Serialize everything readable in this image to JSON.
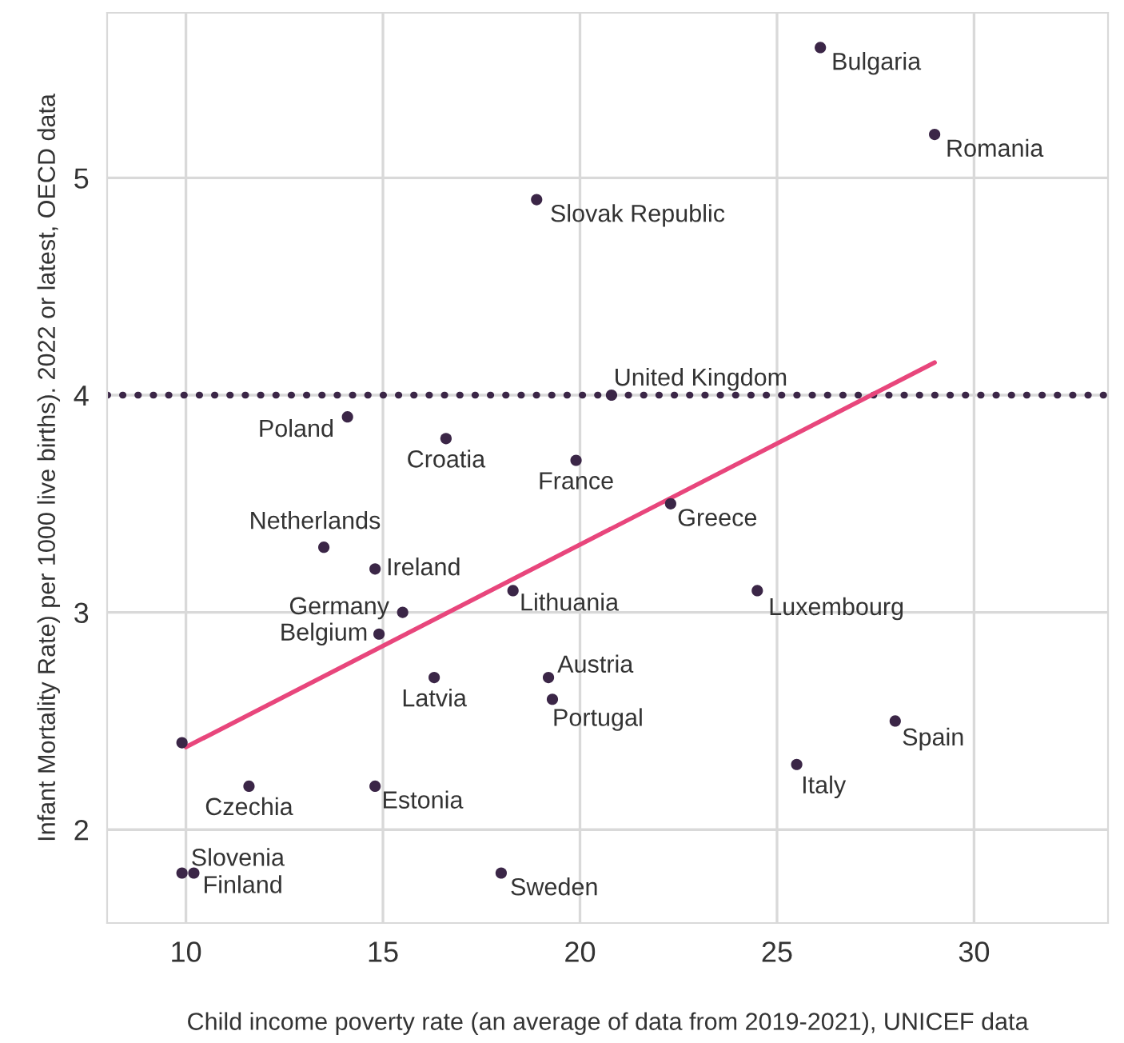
{
  "chart_data": {
    "type": "scatter",
    "xlabel": "Child income poverty rate (an average of data from 2019-2021), UNICEF data",
    "ylabel": "Infant Mortality Rate) per 1000 live births). 2022 or latest, OECD data",
    "xlim": [
      8,
      33.4
    ],
    "ylim": [
      1.57,
      5.76
    ],
    "xticks": [
      10,
      15,
      20,
      25,
      30
    ],
    "yticks": [
      2,
      3,
      4,
      5
    ],
    "grid": true,
    "series": [
      {
        "marker": "circle",
        "color": "#3b2647",
        "x": [
          26.1,
          29.0,
          18.9,
          20.8,
          14.1,
          16.6,
          19.9,
          22.3,
          13.5,
          14.8,
          18.3,
          24.5,
          15.5,
          14.9,
          16.3,
          19.2,
          19.3,
          28.0,
          25.5,
          9.9,
          11.6,
          14.8,
          9.9,
          10.2,
          18.0
        ],
        "values": [
          5.6,
          5.2,
          4.9,
          4.0,
          3.9,
          3.8,
          3.7,
          3.5,
          3.3,
          3.2,
          3.1,
          3.1,
          3.0,
          2.9,
          2.7,
          2.7,
          2.6,
          2.5,
          2.3,
          2.4,
          2.2,
          2.2,
          1.8,
          1.8,
          1.8
        ]
      },
      {
        "type": "line",
        "color": "#e8467c",
        "x": [
          10,
          29
        ],
        "values": [
          2.38,
          4.15
        ]
      }
    ],
    "ref_lines": [
      {
        "axis": "y",
        "value": 4,
        "color": "#3b2647",
        "line_style": "dotted"
      }
    ],
    "annotations": [
      {
        "text": "Bulgaria",
        "x": 26.1,
        "y": 5.6
      },
      {
        "text": "Romania",
        "x": 29.0,
        "y": 5.2
      },
      {
        "text": "Slovak Republic",
        "x": 18.9,
        "y": 4.9
      },
      {
        "text": "United Kingdom",
        "x": 20.8,
        "y": 4.0
      },
      {
        "text": "Poland",
        "x": 14.1,
        "y": 3.9
      },
      {
        "text": "Croatia",
        "x": 16.6,
        "y": 3.8
      },
      {
        "text": "France",
        "x": 19.9,
        "y": 3.7
      },
      {
        "text": "Greece",
        "x": 22.3,
        "y": 3.5
      },
      {
        "text": "Netherlands",
        "x": 13.5,
        "y": 3.3
      },
      {
        "text": "Ireland",
        "x": 14.8,
        "y": 3.2
      },
      {
        "text": "Lithuania",
        "x": 18.3,
        "y": 3.1
      },
      {
        "text": "Luxembourg",
        "x": 24.5,
        "y": 3.1
      },
      {
        "text": "Germany",
        "x": 15.5,
        "y": 3.0
      },
      {
        "text": "Belgium",
        "x": 14.9,
        "y": 2.9
      },
      {
        "text": "Latvia",
        "x": 16.3,
        "y": 2.7
      },
      {
        "text": "Austria",
        "x": 19.2,
        "y": 2.7
      },
      {
        "text": "Portugal",
        "x": 19.3,
        "y": 2.6
      },
      {
        "text": "Spain",
        "x": 28.0,
        "y": 2.5
      },
      {
        "text": "Italy",
        "x": 25.5,
        "y": 2.3
      },
      {
        "text": "Czechia",
        "x": 11.6,
        "y": 2.2
      },
      {
        "text": "Estonia",
        "x": 14.8,
        "y": 2.2
      },
      {
        "text": "Slovenia",
        "x": 9.9,
        "y": 1.8
      },
      {
        "text": "Finland",
        "x": 10.2,
        "y": 1.8
      },
      {
        "text": "Sweden",
        "x": 18.0,
        "y": 1.8
      }
    ]
  }
}
